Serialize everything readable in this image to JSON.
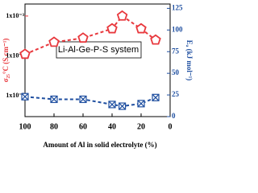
{
  "chart_data": {
    "type": "line",
    "annotation": "Li-Al-Ge-P-S system",
    "xlabel": "Amount of Al in solid electrolyte (%)",
    "ylabel": "σ₂₅°C (S cm⁻¹)",
    "y2label": "Eₐ (kJ mol⁻¹)",
    "x": [
      100,
      80,
      60,
      40,
      33,
      20,
      10
    ],
    "xlim": [
      100,
      0
    ],
    "xticks": [
      100,
      80,
      60,
      40,
      20,
      0
    ],
    "ylog": true,
    "ylim": [
      3e-06,
      0.002
    ],
    "yticks": [
      {
        "value": 1e-05,
        "label": "1x10⁻⁵"
      },
      {
        "value": 0.0001,
        "label": "1x10⁻⁴"
      },
      {
        "value": 0.001,
        "label": "1x10⁻³"
      }
    ],
    "y2lim": [
      0,
      130
    ],
    "y2ticks": [
      0,
      25,
      50,
      75,
      100,
      125
    ],
    "series": [
      {
        "name": "σ",
        "color": "#e8383d",
        "marker": "pentagon",
        "values": [
          0.00011,
          0.00022,
          0.00028,
          0.00048,
          0.001,
          0.00048,
          0.00025
        ]
      },
      {
        "name": "Ea",
        "color": "#1f4fa0",
        "marker": "crossed-square",
        "axis": "y2",
        "values": [
          23,
          20,
          20,
          14,
          12,
          15,
          22
        ]
      }
    ]
  }
}
